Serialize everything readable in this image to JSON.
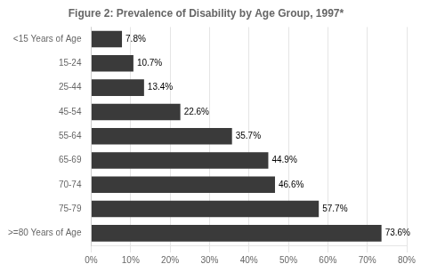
{
  "chart_data": {
    "type": "bar",
    "orientation": "horizontal",
    "title": "Figure 2: Prevalence of Disability by Age Group, 1997*",
    "categories": [
      "<15 Years of Age",
      "15-24",
      "25-44",
      "45-54",
      "55-64",
      "65-69",
      "70-74",
      "75-79",
      ">=80 Years of Age"
    ],
    "values": [
      7.8,
      10.7,
      13.4,
      22.6,
      35.7,
      44.9,
      46.6,
      57.7,
      73.6
    ],
    "value_labels": [
      "7.8%",
      "10.7%",
      "13.4%",
      "22.6%",
      "35.7%",
      "44.9%",
      "46.6%",
      "57.7%",
      "73.6%"
    ],
    "data_labels": true,
    "color": "#3a3a3a",
    "xlim": [
      0,
      80
    ],
    "xticks": [
      {
        "value": 0,
        "label": "0%"
      },
      {
        "value": 10,
        "label": "10%"
      },
      {
        "value": 20,
        "label": "20%"
      },
      {
        "value": 30,
        "label": "30%"
      },
      {
        "value": 40,
        "label": "40%"
      },
      {
        "value": 50,
        "label": "50%"
      },
      {
        "value": 60,
        "label": "60%"
      },
      {
        "value": 70,
        "label": "70%"
      },
      {
        "value": 80,
        "label": "80%"
      }
    ],
    "grid": true
  }
}
